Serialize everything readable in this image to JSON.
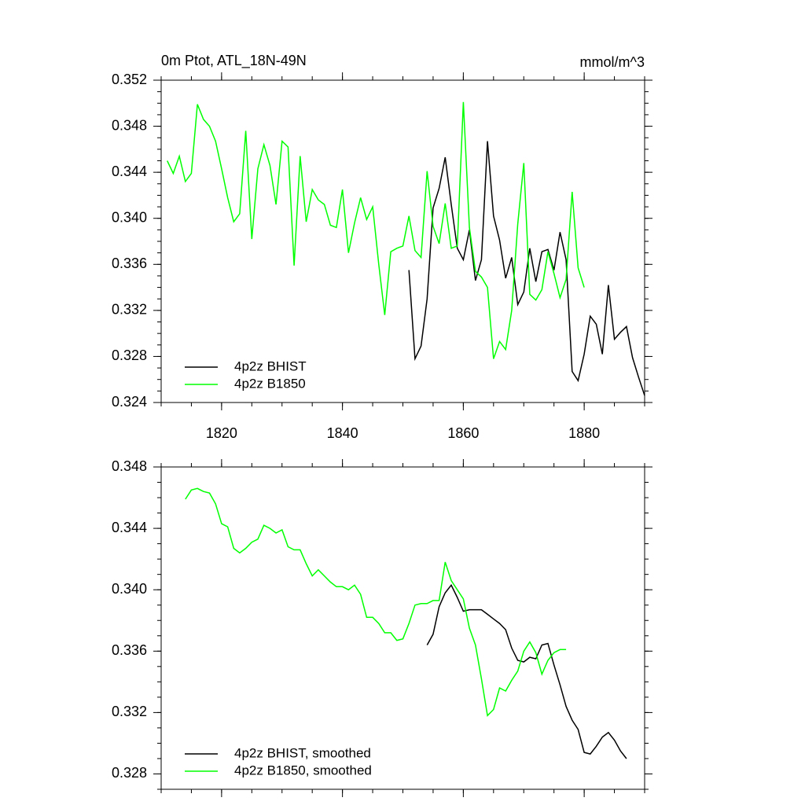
{
  "chart_data": [
    {
      "type": "line",
      "title": "0m Ptot, ATL_18N-49N",
      "units_label": "mmol/m^3",
      "xlim": [
        1810,
        1890
      ],
      "xticks": [
        1820,
        1840,
        1860,
        1880
      ],
      "ylim": [
        0.324,
        0.352
      ],
      "yticks": [
        0.324,
        0.328,
        0.332,
        0.336,
        {
          "value": 0.34,
          "label": "0.340"
        },
        0.344,
        0.348,
        0.352
      ],
      "legend": "lower left",
      "series": [
        {
          "name": "4p2z BHIST",
          "color": "#000000",
          "x": [
            1851,
            1852,
            1853,
            1854,
            1855,
            1856,
            1857,
            1858,
            1859,
            1860,
            1861,
            1862,
            1863,
            1864,
            1865,
            1866,
            1867,
            1868,
            1869,
            1870,
            1871,
            1872,
            1873,
            1874,
            1875,
            1876,
            1877,
            1878,
            1879,
            1880,
            1881,
            1882,
            1883,
            1884,
            1885,
            1886,
            1887,
            1888,
            1889,
            1890
          ],
          "values": [
            0.3355,
            0.3278,
            0.3289,
            0.333,
            0.3409,
            0.3426,
            0.3453,
            0.3412,
            0.3374,
            0.3364,
            0.339,
            0.3346,
            0.3364,
            0.3467,
            0.3402,
            0.3381,
            0.3348,
            0.3366,
            0.3325,
            0.3336,
            0.3374,
            0.3345,
            0.3371,
            0.3373,
            0.3355,
            0.3388,
            0.3364,
            0.3267,
            0.3259,
            0.3282,
            0.3315,
            0.3308,
            0.3282,
            0.3342,
            0.3295,
            0.3301,
            0.3306,
            0.3279,
            0.3262,
            0.3246
          ]
        },
        {
          "name": "4p2z B1850",
          "color": "#00ff00",
          "x": [
            1811,
            1812,
            1813,
            1814,
            1815,
            1816,
            1817,
            1818,
            1819,
            1820,
            1821,
            1822,
            1823,
            1824,
            1825,
            1826,
            1827,
            1828,
            1829,
            1830,
            1831,
            1832,
            1833,
            1834,
            1835,
            1836,
            1837,
            1838,
            1839,
            1840,
            1841,
            1842,
            1843,
            1844,
            1845,
            1846,
            1847,
            1848,
            1849,
            1850,
            1851,
            1852,
            1853,
            1854,
            1855,
            1856,
            1857,
            1858,
            1859,
            1860,
            1861,
            1862,
            1863,
            1864,
            1865,
            1866,
            1867,
            1868,
            1869,
            1870,
            1871,
            1872,
            1873,
            1874,
            1875,
            1876,
            1877,
            1878,
            1879,
            1880
          ],
          "values": [
            0.345,
            0.3439,
            0.3454,
            0.3432,
            0.3439,
            0.3499,
            0.3486,
            0.348,
            0.3467,
            0.3443,
            0.3418,
            0.3397,
            0.3404,
            0.3476,
            0.3382,
            0.3443,
            0.3464,
            0.3446,
            0.3412,
            0.3467,
            0.3462,
            0.3359,
            0.3454,
            0.3397,
            0.3425,
            0.3416,
            0.3412,
            0.3394,
            0.3392,
            0.3425,
            0.337,
            0.3396,
            0.3418,
            0.3399,
            0.341,
            0.336,
            0.3316,
            0.3371,
            0.3374,
            0.3376,
            0.3402,
            0.3372,
            0.3366,
            0.3441,
            0.3393,
            0.3378,
            0.3413,
            0.3374,
            0.3376,
            0.3501,
            0.3392,
            0.3354,
            0.3349,
            0.334,
            0.3278,
            0.3293,
            0.3286,
            0.332,
            0.3395,
            0.3448,
            0.3334,
            0.3329,
            0.3338,
            0.3371,
            0.3352,
            0.3331,
            0.3347,
            0.3423,
            0.3357,
            0.334
          ]
        }
      ]
    },
    {
      "type": "line",
      "xlim": [
        1810,
        1890
      ],
      "xticks": [
        1820,
        1840,
        1860,
        1880
      ],
      "ylim": [
        0.327,
        0.348
      ],
      "yticks": [
        0.328,
        0.332,
        0.336,
        {
          "value": 0.34,
          "label": "0.340"
        },
        0.344,
        0.348
      ],
      "legend": "lower left",
      "series": [
        {
          "name": "4p2z BHIST, smoothed",
          "color": "#000000",
          "x": [
            1854,
            1855,
            1856,
            1857,
            1858,
            1859,
            1860,
            1861,
            1862,
            1863,
            1864,
            1865,
            1866,
            1867,
            1868,
            1869,
            1870,
            1871,
            1872,
            1873,
            1874,
            1875,
            1876,
            1877,
            1878,
            1879,
            1880,
            1881,
            1882,
            1883,
            1884,
            1885,
            1886,
            1887
          ],
          "values": [
            0.3364,
            0.3371,
            0.3389,
            0.3398,
            0.3403,
            0.3395,
            0.3386,
            0.3387,
            0.3387,
            0.3387,
            0.3384,
            0.3381,
            0.3378,
            0.3374,
            0.3362,
            0.3354,
            0.3353,
            0.3356,
            0.3355,
            0.3364,
            0.3365,
            0.3351,
            0.3338,
            0.3324,
            0.3315,
            0.3309,
            0.3294,
            0.3293,
            0.3298,
            0.3304,
            0.3307,
            0.3302,
            0.3295,
            0.329
          ]
        },
        {
          "name": "4p2z B1850, smoothed",
          "color": "#00ff00",
          "x": [
            1814,
            1815,
            1816,
            1817,
            1818,
            1819,
            1820,
            1821,
            1822,
            1823,
            1824,
            1825,
            1826,
            1827,
            1828,
            1829,
            1830,
            1831,
            1832,
            1833,
            1834,
            1835,
            1836,
            1837,
            1838,
            1839,
            1840,
            1841,
            1842,
            1843,
            1844,
            1845,
            1846,
            1847,
            1848,
            1849,
            1850,
            1851,
            1852,
            1853,
            1854,
            1855,
            1856,
            1857,
            1858,
            1859,
            1860,
            1861,
            1862,
            1863,
            1864,
            1865,
            1866,
            1867,
            1868,
            1869,
            1870,
            1871,
            1872,
            1873,
            1874,
            1875,
            1876,
            1877
          ],
          "values": [
            0.3459,
            0.3465,
            0.3466,
            0.3464,
            0.3463,
            0.3456,
            0.3443,
            0.3441,
            0.3427,
            0.3424,
            0.3427,
            0.3431,
            0.3433,
            0.3442,
            0.344,
            0.3437,
            0.3439,
            0.3428,
            0.3426,
            0.3426,
            0.3417,
            0.3409,
            0.3413,
            0.3409,
            0.3405,
            0.3402,
            0.3402,
            0.34,
            0.3403,
            0.3397,
            0.3382,
            0.3382,
            0.3378,
            0.3372,
            0.3372,
            0.3367,
            0.3368,
            0.3378,
            0.339,
            0.3391,
            0.3391,
            0.3393,
            0.3393,
            0.3418,
            0.3406,
            0.34,
            0.3394,
            0.3375,
            0.3364,
            0.3342,
            0.3318,
            0.3322,
            0.3336,
            0.3334,
            0.3341,
            0.3347,
            0.336,
            0.3366,
            0.3359,
            0.3345,
            0.3354,
            0.3359,
            0.3361,
            0.3361
          ]
        }
      ]
    }
  ]
}
